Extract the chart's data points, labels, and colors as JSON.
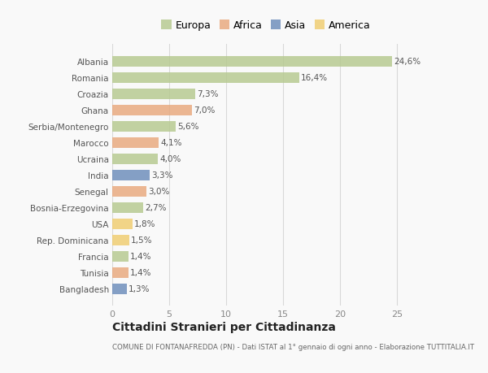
{
  "countries": [
    "Albania",
    "Romania",
    "Croazia",
    "Ghana",
    "Serbia/Montenegro",
    "Marocco",
    "Ucraina",
    "India",
    "Senegal",
    "Bosnia-Erzegovina",
    "USA",
    "Rep. Dominicana",
    "Francia",
    "Tunisia",
    "Bangladesh"
  ],
  "values": [
    24.6,
    16.4,
    7.3,
    7.0,
    5.6,
    4.1,
    4.0,
    3.3,
    3.0,
    2.7,
    1.8,
    1.5,
    1.4,
    1.4,
    1.3
  ],
  "labels": [
    "24,6%",
    "16,4%",
    "7,3%",
    "7,0%",
    "5,6%",
    "4,1%",
    "4,0%",
    "3,3%",
    "3,0%",
    "2,7%",
    "1,8%",
    "1,5%",
    "1,4%",
    "1,4%",
    "1,3%"
  ],
  "colors": [
    "#b5c98e",
    "#b5c98e",
    "#b5c98e",
    "#e8a87c",
    "#b5c98e",
    "#e8a87c",
    "#b5c98e",
    "#6b8cba",
    "#e8a87c",
    "#b5c98e",
    "#f0cc6e",
    "#f0cc6e",
    "#b5c98e",
    "#e8a87c",
    "#6b8cba"
  ],
  "legend_labels": [
    "Europa",
    "Africa",
    "Asia",
    "America"
  ],
  "legend_colors": [
    "#b5c98e",
    "#e8a87c",
    "#6b8cba",
    "#f0cc6e"
  ],
  "title": "Cittadini Stranieri per Cittadinanza",
  "subtitle": "COMUNE DI FONTANAFREDDA (PN) - Dati ISTAT al 1° gennaio di ogni anno - Elaborazione TUTTITALIA.IT",
  "xlim": [
    0,
    27
  ],
  "xticks": [
    0,
    5,
    10,
    15,
    20,
    25
  ],
  "background_color": "#f9f9f9",
  "grid_color": "#d8d8d8",
  "bar_height": 0.65
}
